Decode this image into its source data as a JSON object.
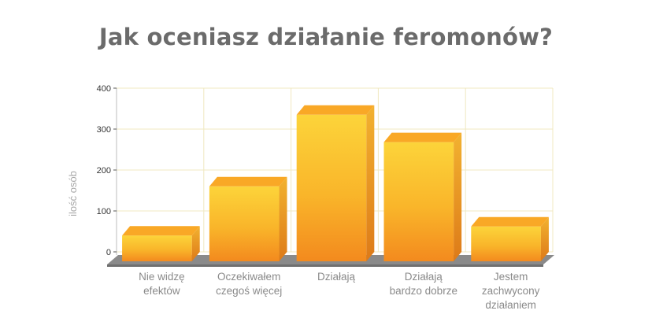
{
  "chart_data": {
    "type": "bar",
    "title": "Jak oceniasz działanie feromonów?",
    "ylabel": "ilość osób",
    "xlabel": "",
    "categories": [
      [
        "Nie widzę",
        "efektów"
      ],
      [
        "Oczekiwałem",
        "czegoś więcej"
      ],
      [
        "Działają"
      ],
      [
        "Działają",
        "bardzo dobrze"
      ],
      [
        "Jestem",
        "zachwycony",
        "działaniem"
      ]
    ],
    "values": [
      40,
      160,
      335,
      268,
      62
    ],
    "ylim": [
      0,
      400
    ],
    "yticks": [
      0,
      100,
      200,
      300,
      400
    ],
    "grid": true,
    "colors": {
      "bar_top": "#fcd43a",
      "bar_mid": "#f9b52a",
      "bar_bottom": "#f38a1e",
      "bar_side": "#e2811a",
      "bar_cap": "#f9a826",
      "grid": "#f0e8c0",
      "floor": "#8a8a8a",
      "title": "#6b6b6b"
    }
  }
}
